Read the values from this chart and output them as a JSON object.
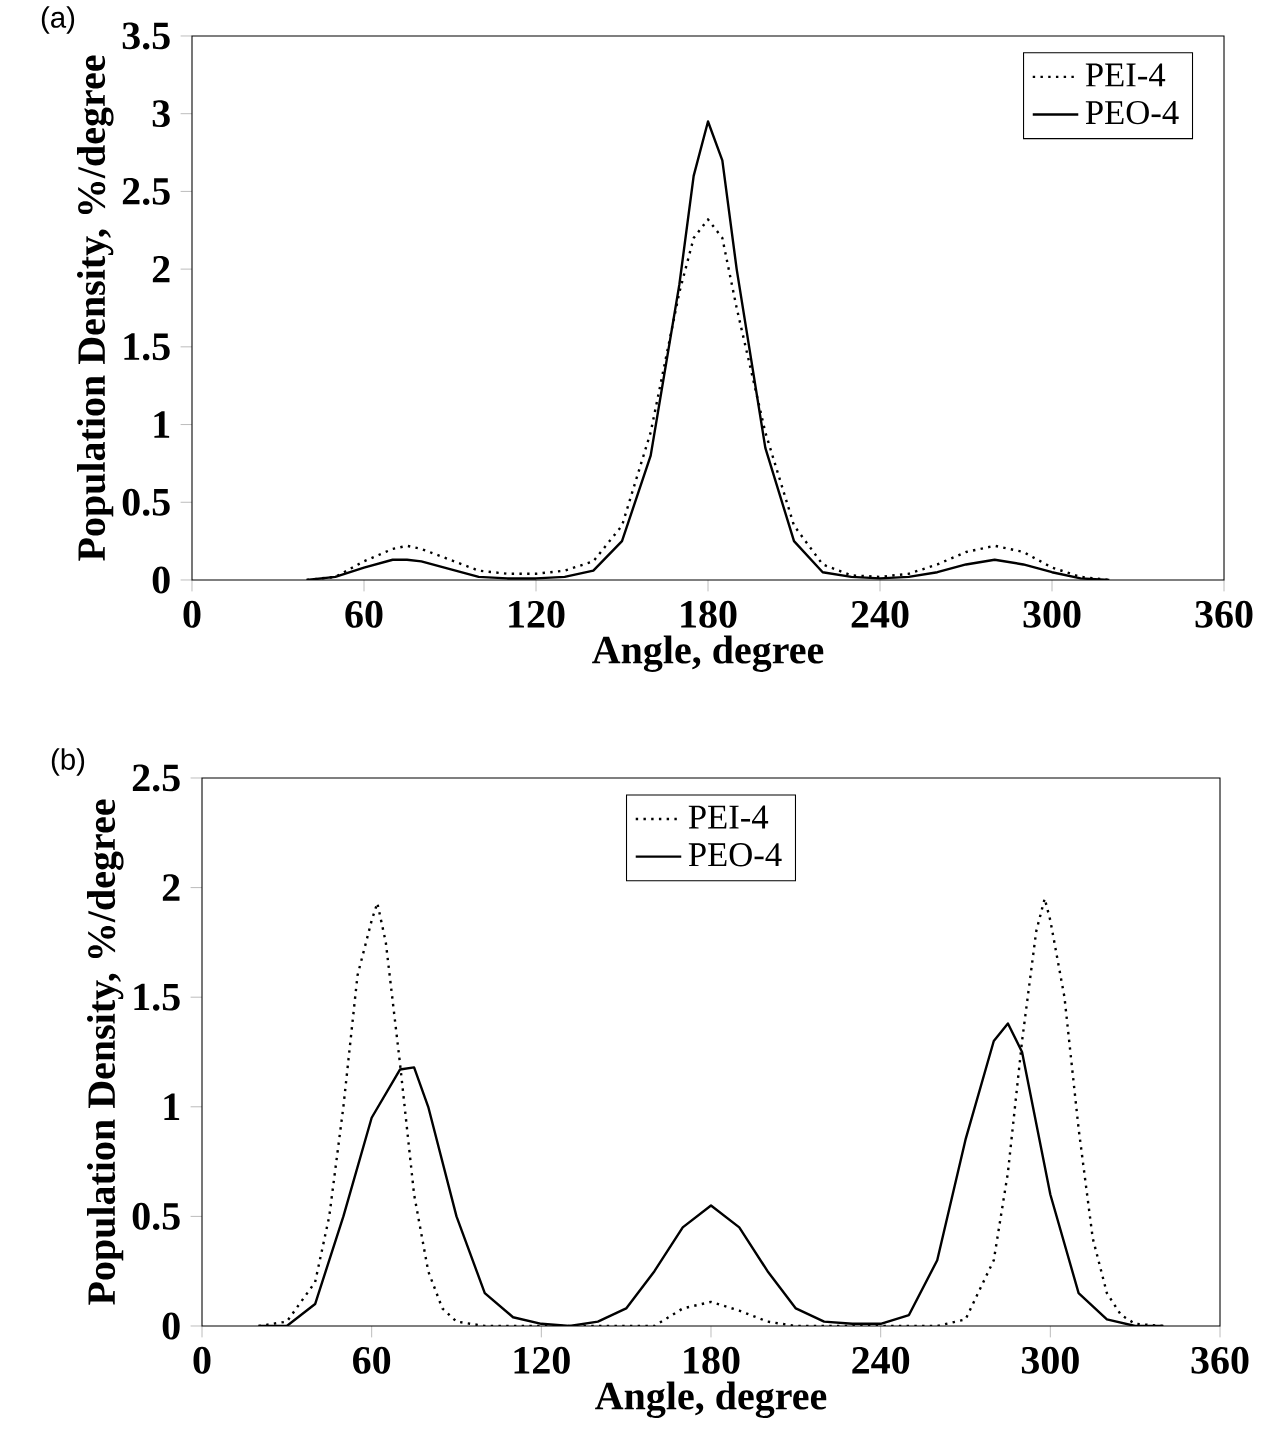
{
  "chart_data": [
    {
      "type": "line",
      "title": "(a)",
      "xlabel": "Angle, degree",
      "ylabel": "Population Density, %/degree",
      "xlim": [
        0,
        360
      ],
      "ylim": [
        0,
        3.5
      ],
      "xticks": [
        0,
        60,
        120,
        180,
        240,
        300,
        360
      ],
      "yticks": [
        0,
        0.5,
        1,
        1.5,
        2,
        2.5,
        3,
        3.5
      ],
      "legend": "top right",
      "x": [
        40,
        50,
        60,
        70,
        75,
        80,
        90,
        100,
        110,
        120,
        130,
        140,
        150,
        160,
        170,
        175,
        180,
        185,
        190,
        200,
        210,
        220,
        230,
        240,
        250,
        260,
        270,
        280,
        290,
        300,
        310,
        320
      ],
      "series": [
        {
          "name": "PEI-4",
          "color": "#000000",
          "line_style": "dotted",
          "values": [
            0,
            0.02,
            0.12,
            0.2,
            0.22,
            0.2,
            0.13,
            0.06,
            0.04,
            0.04,
            0.06,
            0.12,
            0.35,
            0.95,
            1.85,
            2.2,
            2.32,
            2.2,
            1.75,
            0.95,
            0.35,
            0.1,
            0.03,
            0.02,
            0.04,
            0.1,
            0.18,
            0.22,
            0.18,
            0.08,
            0.02,
            0
          ]
        },
        {
          "name": "PEO-4",
          "color": "#000000",
          "line_style": "solid",
          "values": [
            0,
            0.02,
            0.08,
            0.13,
            0.13,
            0.12,
            0.07,
            0.02,
            0.01,
            0.01,
            0.02,
            0.06,
            0.25,
            0.8,
            1.9,
            2.6,
            2.95,
            2.7,
            2.0,
            0.85,
            0.25,
            0.05,
            0.02,
            0.01,
            0.02,
            0.05,
            0.1,
            0.13,
            0.1,
            0.05,
            0.01,
            0
          ]
        }
      ]
    },
    {
      "type": "line",
      "title": "(b)",
      "xlabel": "Angle, degree",
      "ylabel": "Population Density, %/degree",
      "xlim": [
        0,
        360
      ],
      "ylim": [
        0,
        2.5
      ],
      "xticks": [
        0,
        60,
        120,
        180,
        240,
        300,
        360
      ],
      "yticks": [
        0,
        0.5,
        1,
        1.5,
        2,
        2.5
      ],
      "legend": "top",
      "series": [
        {
          "name": "PEI-4",
          "color": "#000000",
          "line_style": "dotted",
          "x": [
            20,
            30,
            40,
            45,
            50,
            55,
            60,
            62,
            65,
            70,
            75,
            80,
            85,
            90,
            100,
            160,
            170,
            180,
            190,
            200,
            210,
            260,
            270,
            280,
            285,
            290,
            295,
            298,
            300,
            305,
            310,
            315,
            320,
            325,
            330,
            340
          ],
          "values": [
            0,
            0.02,
            0.2,
            0.5,
            1.0,
            1.6,
            1.85,
            1.93,
            1.75,
            1.2,
            0.6,
            0.25,
            0.08,
            0.02,
            0,
            0,
            0.08,
            0.11,
            0.07,
            0.02,
            0,
            0,
            0.03,
            0.3,
            0.7,
            1.3,
            1.8,
            1.95,
            1.85,
            1.5,
            0.9,
            0.4,
            0.15,
            0.05,
            0.01,
            0
          ]
        },
        {
          "name": "PEO-4",
          "color": "#000000",
          "line_style": "solid",
          "x": [
            20,
            30,
            40,
            50,
            60,
            70,
            75,
            80,
            90,
            100,
            110,
            120,
            130,
            140,
            150,
            160,
            170,
            180,
            190,
            200,
            210,
            220,
            230,
            240,
            250,
            260,
            270,
            280,
            285,
            290,
            300,
            310,
            320,
            330,
            340
          ],
          "values": [
            0,
            0,
            0.1,
            0.5,
            0.95,
            1.17,
            1.18,
            1.0,
            0.5,
            0.15,
            0.04,
            0.01,
            0,
            0.02,
            0.08,
            0.25,
            0.45,
            0.55,
            0.45,
            0.25,
            0.08,
            0.02,
            0.01,
            0.01,
            0.05,
            0.3,
            0.85,
            1.3,
            1.38,
            1.25,
            0.6,
            0.15,
            0.03,
            0,
            0
          ]
        }
      ]
    }
  ]
}
